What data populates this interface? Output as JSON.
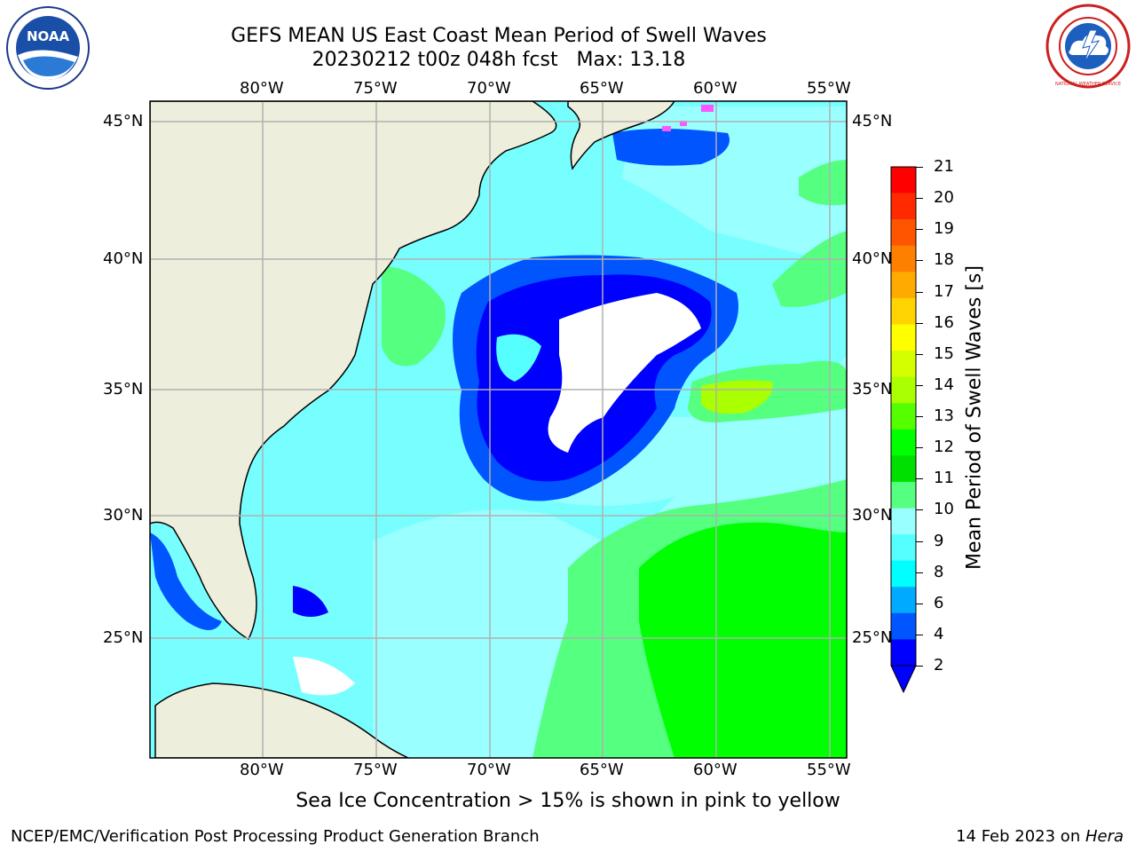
{
  "title": {
    "line1": "GEFS MEAN US East Coast Mean Period of Swell Waves",
    "line2": "20230212 t00z 048h fcst   Max: 13.18"
  },
  "axes": {
    "lon_labels": [
      "80°W",
      "75°W",
      "70°W",
      "65°W",
      "60°W",
      "55°W"
    ],
    "lat_labels": [
      "45°N",
      "40°N",
      "35°N",
      "30°N",
      "25°N"
    ]
  },
  "colorbar": {
    "label": "Mean Period of Swell Waves [s]",
    "ticks": [
      "21",
      "20",
      "19",
      "18",
      "17",
      "16",
      "15",
      "14",
      "13",
      "12",
      "11",
      "10",
      "9",
      "8",
      "6",
      "4",
      "2"
    ],
    "colors": [
      "#ff0000",
      "#ff2a00",
      "#ff5500",
      "#ff8000",
      "#ffaa00",
      "#ffd400",
      "#ffff00",
      "#d4ff00",
      "#aaff00",
      "#55ff00",
      "#00ff00",
      "#00e000",
      "#55ff7f",
      "#99ffff",
      "#55ffff",
      "#00ffff",
      "#00aaff",
      "#0055ff",
      "#0000ff"
    ]
  },
  "colors": {
    "land": "#eeeedd",
    "ocean_bg": "#77ffff",
    "grid": "#b0b0b0",
    "light_cyan": "#99ffff",
    "cyan": "#55ffff",
    "light_green": "#55ff7f",
    "green": "#00ff00",
    "blue": "#0055ff",
    "dark_blue": "#0000ff"
  },
  "map": {
    "extent_lon": [
      -85,
      -55
    ],
    "extent_lat": [
      20.5,
      46
    ],
    "max_value": 13.18
  },
  "footer": {
    "note": "Sea Ice Concentration > 15% is shown in pink to yellow",
    "left": "NCEP/EMC/Verification Post Processing Product Generation Branch",
    "right_date": "14 Feb 2023 on ",
    "right_machine": "Hera"
  },
  "logos": {
    "left": "NOAA",
    "right": "NATIONAL WEATHER SERVICE"
  }
}
